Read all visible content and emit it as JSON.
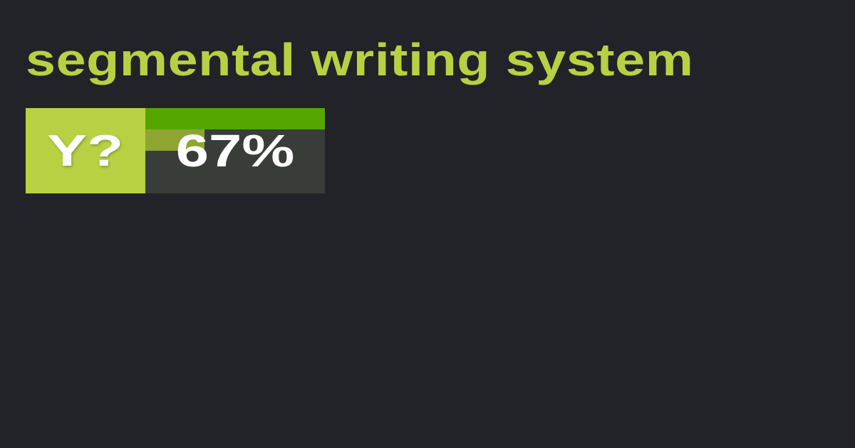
{
  "title": "segmental writing system",
  "badge": {
    "label": "Y?",
    "percent_text": "67%",
    "bar_top_fraction": 1.0,
    "bar_bottom_fraction": 0.33,
    "colors": {
      "background": "#212328",
      "accent": "#b8d143",
      "bar_top": "#55a600",
      "bar_bottom": "#8fa532",
      "panel": "#393d37"
    }
  }
}
